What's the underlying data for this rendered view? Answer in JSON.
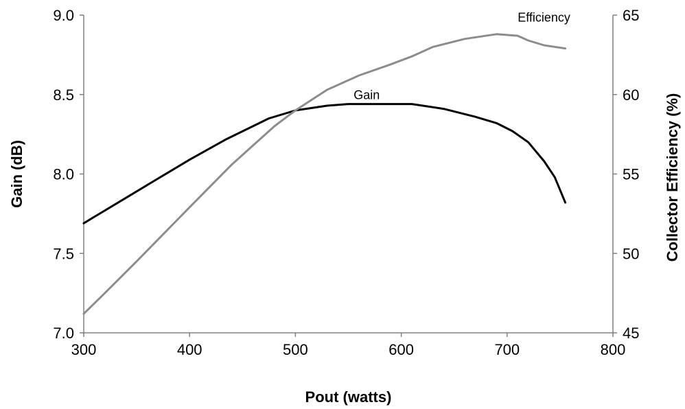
{
  "chart_data": {
    "type": "line",
    "title": "",
    "xlabel": "Pout (watts)",
    "ylabel": "Gain (dB)",
    "y2label": "Collector Efficiency (%)",
    "xlim": [
      300,
      800
    ],
    "ylim": [
      7.0,
      9.0
    ],
    "y2lim": [
      45,
      65
    ],
    "x_ticks": [
      "300",
      "400",
      "500",
      "600",
      "700",
      "800"
    ],
    "y_ticks": [
      "7.0",
      "7.5",
      "8.0",
      "8.5",
      "9.0"
    ],
    "y2_ticks": [
      "45",
      "50",
      "55",
      "60",
      "65"
    ],
    "grid": false,
    "series": [
      {
        "name": "Gain",
        "axis": "left",
        "color": "#000000",
        "x": [
          300,
          315,
          340,
          370,
          400,
          435,
          475,
          500,
          530,
          550,
          580,
          610,
          640,
          670,
          690,
          705,
          720,
          735,
          745,
          755
        ],
        "y": [
          7.69,
          7.75,
          7.85,
          7.97,
          8.09,
          8.22,
          8.35,
          8.4,
          8.43,
          8.44,
          8.44,
          8.44,
          8.41,
          8.36,
          8.32,
          8.27,
          8.2,
          8.08,
          7.98,
          7.82
        ]
      },
      {
        "name": "Efficiency",
        "axis": "right",
        "color": "#8c8c8c",
        "x": [
          300,
          320,
          350,
          400,
          440,
          480,
          500,
          530,
          560,
          590,
          610,
          630,
          660,
          690,
          710,
          720,
          735,
          745,
          755
        ],
        "y": [
          46.2,
          47.5,
          49.5,
          52.9,
          55.6,
          58.0,
          59.0,
          60.3,
          61.2,
          61.9,
          62.4,
          63.0,
          63.5,
          63.8,
          63.7,
          63.4,
          63.1,
          63.0,
          62.9
        ]
      }
    ],
    "annotations": [
      {
        "text": "Gain",
        "x": 555,
        "y": 8.47,
        "axis": "left"
      },
      {
        "text": "Efficiency",
        "x": 710,
        "y": 64.6,
        "axis": "right"
      }
    ]
  }
}
